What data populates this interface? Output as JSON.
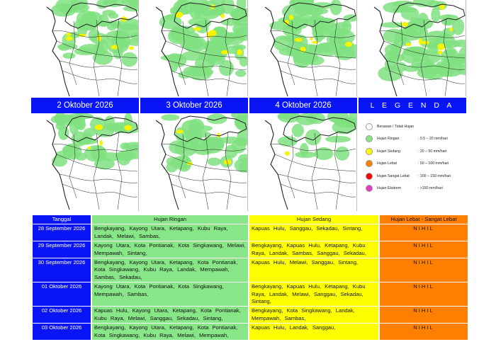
{
  "panels": [
    {
      "date": "",
      "density": "medium"
    },
    {
      "date": "",
      "density": "high"
    },
    {
      "date": "",
      "density": "medium"
    },
    {
      "date": "",
      "density": "high"
    },
    {
      "date": "2 Oktober 2026",
      "density": "low"
    },
    {
      "date": "3 Oktober 2026",
      "density": "low"
    },
    {
      "date": "4 Oktober 2026",
      "density": "minimal"
    }
  ],
  "legend": {
    "title": "L E G E N D A",
    "items": [
      {
        "name": "Berawan / Tidak Hujan",
        "range": "",
        "color": "#ffffff"
      },
      {
        "name": "Hujan Ringan",
        "range": ": 0.5 – 20 mm/hari",
        "color": "#88e588"
      },
      {
        "name": "Hujan Sedang",
        "range": ": 20 – 50 mm/hari",
        "color": "#ffff00"
      },
      {
        "name": "Hujan Lebat",
        "range": ": 50 – 100 mm/hari",
        "color": "#ff8000"
      },
      {
        "name": "Hujan Sangat Lebat",
        "range": ": 100 – 150 mm/hari",
        "color": "#ff0000"
      },
      {
        "name": "Hujan Ekstrem",
        "range": ": >150 mm/hari",
        "color": "#e040c0"
      }
    ]
  },
  "table": {
    "headers": {
      "date": "Tanggal",
      "ringan": "Hujan Ringan",
      "sedang": "Hujan Sedang",
      "lebat": "Hujan Lebat - Sangat Lebat"
    },
    "rows": [
      {
        "date": "28 September 2026",
        "ringan": "Bengkayang, Kayong Utara, Ketapang, Kubu Raya, Landak, Melawi, Sambas,",
        "sedang": "Kapuas Hulu, Sanggau, Sekadau, Sintang,",
        "lebat": "NIHIL"
      },
      {
        "date": "29 September 2026",
        "ringan": "Kayong Utara, Kota Pontianak, Kota Singkawang, Melawi, Mempawah, Sintang,",
        "sedang": "Bengkayang, Kapuas Hulu, Ketapang, Kubu Raya, Landak, Sambas, Sanggau, Sekadau,",
        "lebat": "NIHIL"
      },
      {
        "date": "30 September 2026",
        "ringan": "Bengkayang, Kayong Utara, Ketapang, Kota Pontianak, Kota Singkawang, Kubu Raya, Landak, Mempawah, Sambas, Sekadau,",
        "sedang": "Kapuas Hulu, Melawi, Sanggau, Sintang,",
        "lebat": "NIHIL"
      },
      {
        "date": "01 Oktober 2026",
        "ringan": "Kayong Utara, Kota Pontianak, Kota Singkawang, Mempawah, Sambas,",
        "sedang": "Bengkayang, Kapuas Hulu, Ketapang, Kubu Raya, Landak, Melawi, Sanggau, Sekadau, Sintang,",
        "lebat": "NIHIL"
      },
      {
        "date": "02 Oktober 2026",
        "ringan": "Kapuas Hulu, Kayong Utara, Ketapang, Kota Pontianak, Kubu Raya, Melawi, Sanggau, Sekadau, Sintang,",
        "sedang": "Bengkayang, Kota Singkawang, Landak, Mempawah, Sambas,",
        "lebat": "NIHIL"
      },
      {
        "date": "03 Oktober 2026",
        "ringan": "Bengkayang, Kayong Utara, Ketapang, Kota Pontianak, Kota Singkawang, Kubu Raya, Melawi, Mempawah,",
        "sedang": "Kapuas Hulu, Landak, Sanggau,",
        "lebat": "NIHIL"
      }
    ]
  }
}
